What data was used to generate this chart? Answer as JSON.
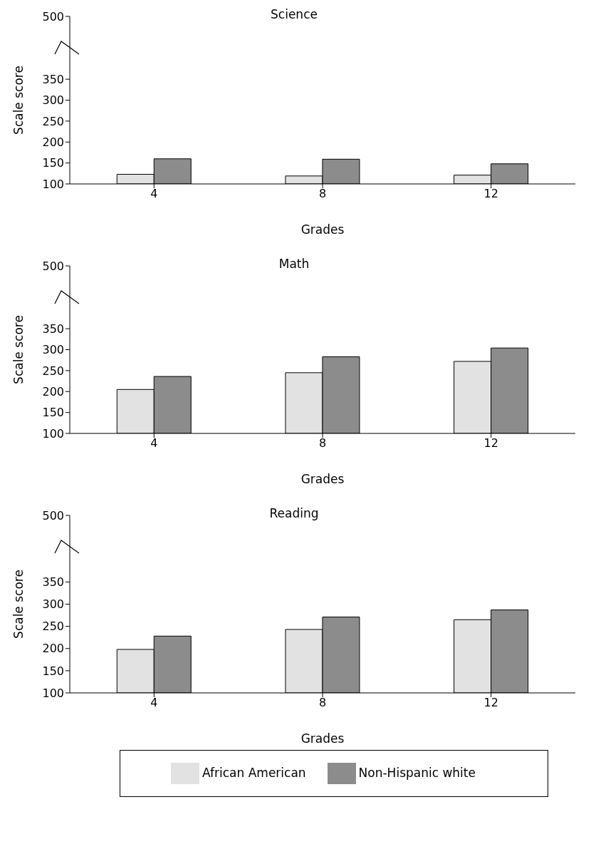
{
  "chart_data": [
    {
      "type": "bar",
      "title": "Science",
      "xlabel": "Grades",
      "ylabel": "Scale score",
      "categories": [
        "4",
        "8",
        "12"
      ],
      "series": [
        {
          "color": "#e2e2e2",
          "values": [
            123,
            119,
            121
          ]
        },
        {
          "color": "#8c8c8c",
          "values": [
            160,
            159,
            148
          ]
        }
      ],
      "ylim": [
        100,
        500
      ],
      "yticks": [
        100,
        150,
        200,
        250,
        300,
        350,
        500
      ],
      "grid": false,
      "legend": false
    },
    {
      "type": "bar",
      "title": "Math",
      "xlabel": "Grades",
      "ylabel": "Scale score",
      "categories": [
        "4",
        "8",
        "12"
      ],
      "series": [
        {
          "color": "#e2e2e2",
          "values": [
            205,
            245,
            272
          ]
        },
        {
          "color": "#8c8c8c",
          "values": [
            236,
            283,
            304
          ]
        }
      ],
      "ylim": [
        100,
        500
      ],
      "yticks": [
        100,
        150,
        200,
        250,
        300,
        350,
        500
      ],
      "grid": false,
      "legend": false
    },
    {
      "type": "bar",
      "title": "Reading",
      "xlabel": "Grades",
      "ylabel": "Scale score",
      "categories": [
        "4",
        "8",
        "12"
      ],
      "series": [
        {
          "name": "African American",
          "color": "#e2e2e2",
          "values": [
            198,
            243,
            265
          ]
        },
        {
          "name": "Non-Hispanic white",
          "color": "#8c8c8c",
          "values": [
            228,
            271,
            287
          ]
        }
      ],
      "ylim": [
        100,
        500
      ],
      "yticks": [
        100,
        150,
        200,
        250,
        300,
        350,
        500
      ],
      "grid": false,
      "legend": "bottom"
    }
  ]
}
